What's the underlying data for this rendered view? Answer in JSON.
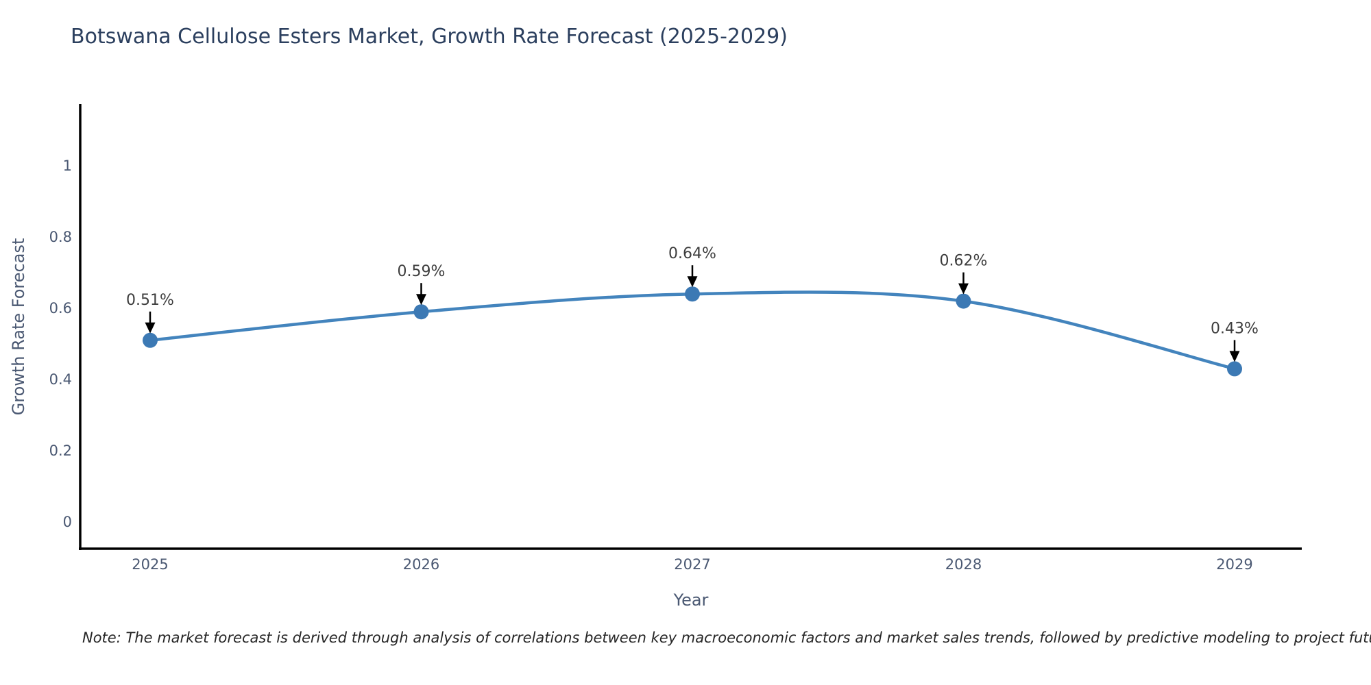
{
  "chart_data": {
    "type": "line",
    "title": "Botswana Cellulose Esters Market, Growth Rate Forecast (2025-2029)",
    "xlabel": "Year",
    "ylabel": "Growth Rate Forecast",
    "categories": [
      "2025",
      "2026",
      "2027",
      "2028",
      "2029"
    ],
    "values": [
      0.51,
      0.59,
      0.64,
      0.62,
      0.43
    ],
    "point_labels": [
      "0.51%",
      "0.59%",
      "0.64%",
      "0.62%",
      "0.43%"
    ],
    "yticks": [
      "0",
      "0.2",
      "0.4",
      "0.6",
      "0.8",
      "1"
    ],
    "ytick_values": [
      0,
      0.2,
      0.4,
      0.6,
      0.8,
      1
    ],
    "ylim": [
      0,
      1.08
    ],
    "line_shape": "spline",
    "grid": false,
    "legend_position": "none",
    "annotations_style": "black-down-arrows-with-percent-labels",
    "colors": {
      "line": "#4384bd",
      "marker": "#3c79b4",
      "arrow": "#000000",
      "axis": "#000000",
      "title_text": "#2b3f5e",
      "tick_text": "#4a5872",
      "point_label_text": "#3d3d3d",
      "note_text": "#262626",
      "background": "#ffffff"
    }
  },
  "footer": {
    "note": "Note: The market forecast is derived through analysis of correlations between key macroeconomic factors and market sales trends, followed by predictive modeling to project future sales"
  }
}
